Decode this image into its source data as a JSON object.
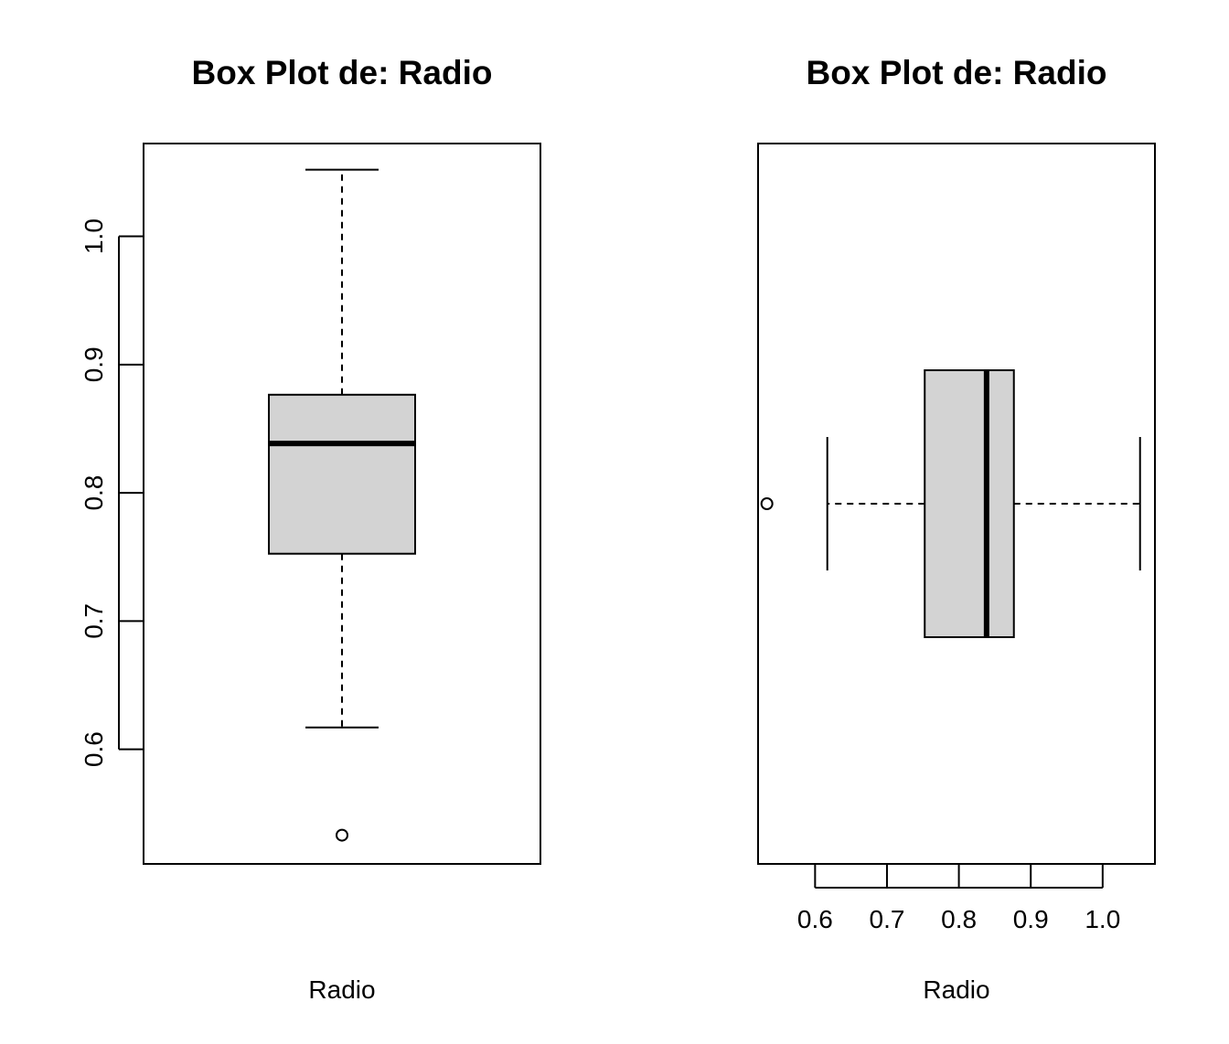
{
  "chart_data": [
    {
      "type": "boxplot",
      "orientation": "vertical",
      "title": "Box Plot de: Radio",
      "xlabel": "Radio",
      "ylabel": "",
      "axis_range": [
        0.5106,
        1.0724
      ],
      "ticks": [
        0.6,
        0.7,
        0.8,
        0.9,
        1.0
      ],
      "tick_labels": [
        "0.6",
        "0.7",
        "0.8",
        "0.9",
        "1.0"
      ],
      "box": {
        "whisker_low": 0.617,
        "q1": 0.7525,
        "median": 0.8385,
        "q3": 0.8765,
        "whisker_high": 1.052
      },
      "outliers": [
        0.533
      ],
      "box_color": "#d3d3d3"
    },
    {
      "type": "boxplot",
      "orientation": "horizontal",
      "title": "Box Plot de: Radio",
      "xlabel": "Radio",
      "ylabel": "",
      "axis_range": [
        0.5207,
        1.0727
      ],
      "ticks": [
        0.6,
        0.7,
        0.8,
        0.9,
        1.0
      ],
      "tick_labels": [
        "0.6",
        "0.7",
        "0.8",
        "0.9",
        "1.0"
      ],
      "box": {
        "whisker_low": 0.617,
        "q1": 0.7525,
        "median": 0.8385,
        "q3": 0.8765,
        "whisker_high": 1.052
      },
      "outliers": [
        0.533
      ],
      "box_color": "#d3d3d3"
    }
  ]
}
